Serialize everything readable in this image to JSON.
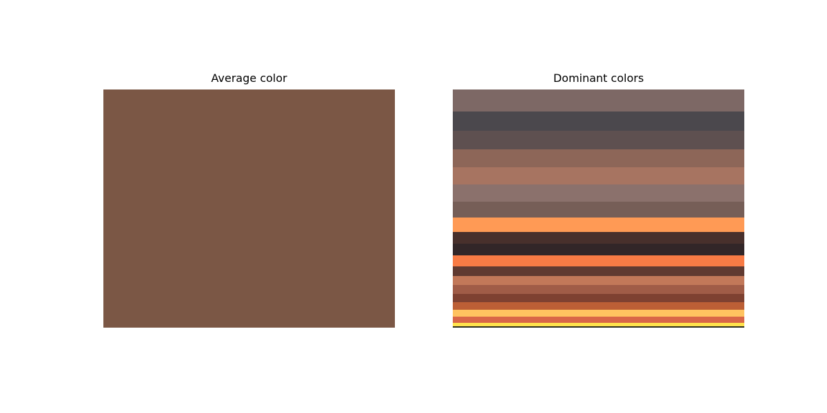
{
  "chart_data": [
    {
      "type": "heatmap",
      "title": "Average color",
      "color": "#7b5745"
    },
    {
      "type": "heatmap",
      "title": "Dominant colors",
      "bands": [
        {
          "color": "#7d6865",
          "weight": 9.2
        },
        {
          "color": "#4b484d",
          "weight": 8.1
        },
        {
          "color": "#5e5050",
          "weight": 7.8
        },
        {
          "color": "#8d6658",
          "weight": 7.5
        },
        {
          "color": "#a77461",
          "weight": 7.2
        },
        {
          "color": "#8b716c",
          "weight": 7.2
        },
        {
          "color": "#765e57",
          "weight": 6.6
        },
        {
          "color": "#ff9a55",
          "weight": 5.8
        },
        {
          "color": "#48302c",
          "weight": 4.9
        },
        {
          "color": "#322628",
          "weight": 4.9
        },
        {
          "color": "#f87b45",
          "weight": 4.6
        },
        {
          "color": "#603a31",
          "weight": 4.0
        },
        {
          "color": "#c27859",
          "weight": 4.0
        },
        {
          "color": "#a05c47",
          "weight": 3.5
        },
        {
          "color": "#7e4131",
          "weight": 3.5
        },
        {
          "color": "#bc5f36",
          "weight": 3.2
        },
        {
          "color": "#ffc360",
          "weight": 2.9
        },
        {
          "color": "#d96647",
          "weight": 2.6
        },
        {
          "color": "#ffe24c",
          "weight": 1.4
        },
        {
          "color": "#2b2b1e",
          "weight": 0.6
        }
      ]
    }
  ]
}
